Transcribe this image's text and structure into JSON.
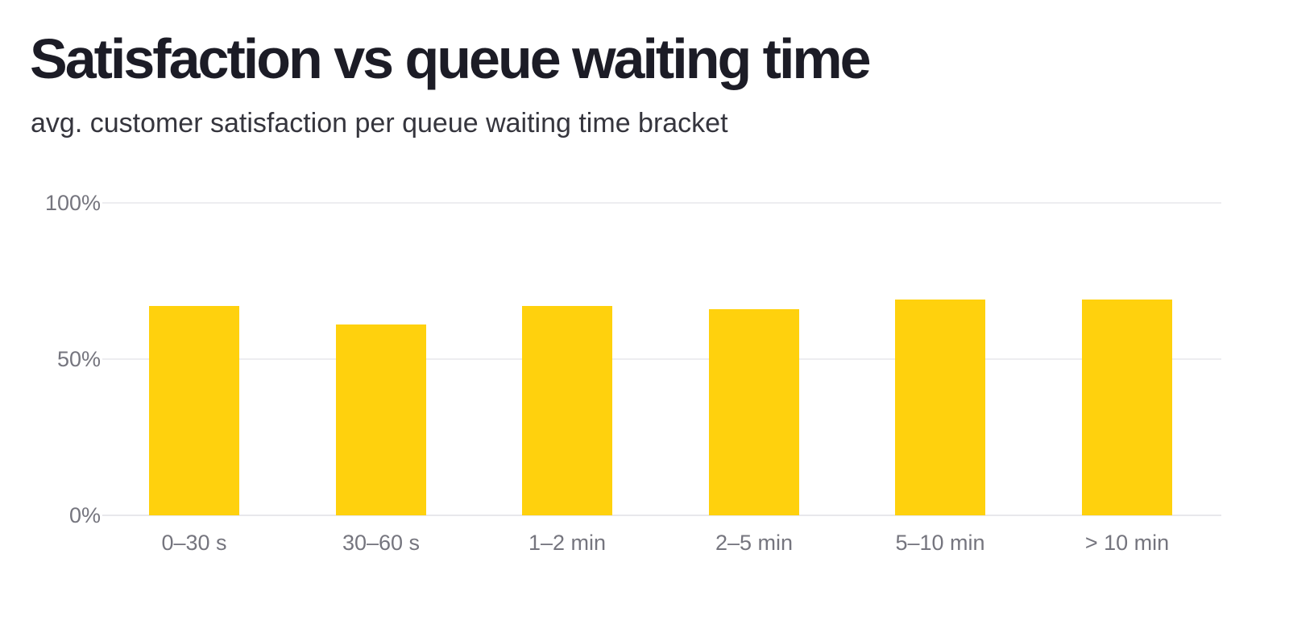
{
  "page": {
    "title": "Satisfaction vs queue waiting time",
    "subtitle": "avg. customer satisfaction per queue waiting time bracket"
  },
  "colors": {
    "bar": "#FFD10D",
    "title_text": "#1C1C26",
    "subtitle_text": "#35353D",
    "axis_text": "#75757E",
    "gridline": "#EDEDF0",
    "background": "#FFFFFF"
  },
  "chart_data": {
    "type": "bar",
    "title": "Satisfaction vs queue waiting time",
    "subtitle": "avg. customer satisfaction per queue waiting time bracket",
    "categories": [
      "0–30 s",
      "30–60 s",
      "1–2 min",
      "2–5 min",
      "5–10 min",
      "> 10 min"
    ],
    "values": [
      67,
      61,
      67,
      66,
      69,
      69
    ],
    "value_unit": "%",
    "xlabel": "",
    "ylabel": "",
    "ylim": [
      0,
      100
    ],
    "yticks": [
      {
        "value": 0,
        "label": "0%"
      },
      {
        "value": 50,
        "label": "50%"
      },
      {
        "value": 100,
        "label": "100%"
      }
    ],
    "grid": "horizontal",
    "legend": "none",
    "bar_color": "#FFD10D"
  }
}
